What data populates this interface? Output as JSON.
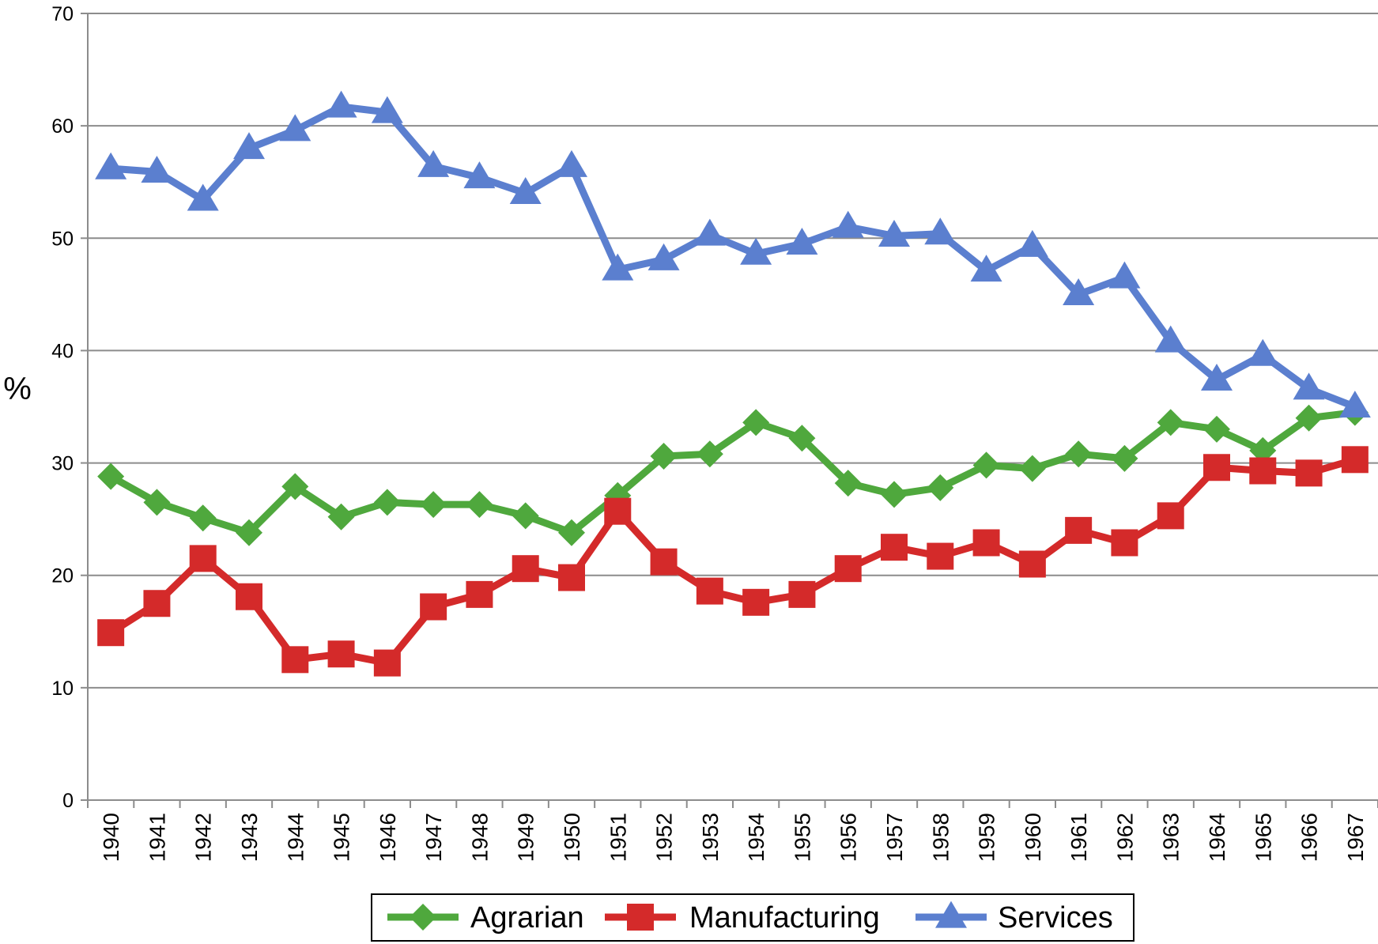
{
  "chart_data": {
    "type": "line",
    "title": "",
    "xlabel": "",
    "ylabel": "%",
    "ylim": [
      0,
      70
    ],
    "yticks": [
      "0",
      "10",
      "20",
      "30",
      "40",
      "50",
      "60",
      "70"
    ],
    "categories": [
      "1940",
      "1941",
      "1942",
      "1943",
      "1944",
      "1945",
      "1946",
      "1947",
      "1948",
      "1949",
      "1950",
      "1951",
      "1952",
      "1953",
      "1954",
      "1955",
      "1956",
      "1957",
      "1958",
      "1959",
      "1960",
      "1961",
      "1962",
      "1963",
      "1964",
      "1965",
      "1966",
      "1967"
    ],
    "grid": true,
    "legend_position": "bottom",
    "series": [
      {
        "name": "Agrarian",
        "color": "#4fa83d",
        "marker": "diamond",
        "values": [
          28.8,
          26.5,
          25.1,
          23.8,
          27.9,
          25.2,
          26.5,
          26.3,
          26.3,
          25.3,
          23.8,
          27.1,
          30.6,
          30.8,
          33.6,
          32.2,
          28.2,
          27.2,
          27.8,
          29.8,
          29.5,
          30.8,
          30.4,
          33.6,
          33.0,
          31.1,
          34.0,
          34.5
        ]
      },
      {
        "name": "Manufacturing",
        "color": "#d42a2a",
        "marker": "square",
        "values": [
          14.9,
          17.5,
          21.5,
          18.1,
          12.5,
          13.0,
          12.2,
          17.2,
          18.3,
          20.6,
          19.8,
          25.7,
          21.2,
          18.6,
          17.6,
          18.3,
          20.6,
          22.5,
          21.7,
          22.9,
          21.0,
          24.0,
          22.9,
          25.3,
          29.6,
          29.3,
          29.1,
          30.3
        ]
      },
      {
        "name": "Services",
        "color": "#5b7fcf",
        "marker": "triangle",
        "values": [
          56.2,
          55.9,
          53.4,
          58.0,
          59.6,
          61.7,
          61.2,
          56.4,
          55.4,
          54.0,
          56.4,
          47.2,
          48.1,
          50.3,
          48.6,
          49.5,
          51.0,
          50.2,
          50.4,
          47.1,
          49.3,
          45.0,
          46.5,
          40.8,
          37.4,
          39.6,
          36.6,
          35.0
        ]
      }
    ]
  }
}
